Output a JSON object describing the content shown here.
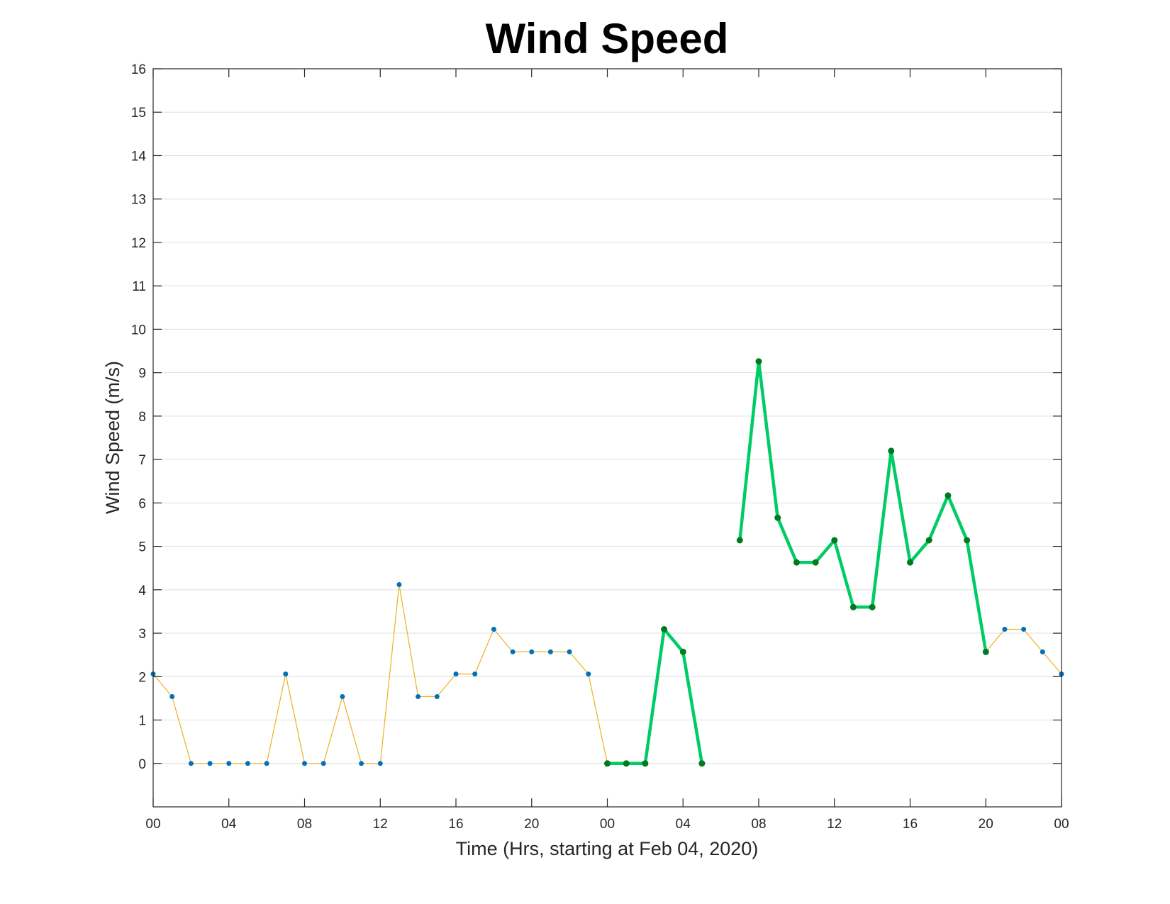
{
  "chart_data": {
    "type": "line",
    "title": "Wind Speed",
    "xlabel": "Time (Hrs, starting at Feb 04, 2020)",
    "ylabel": "Wind Speed (m/s)",
    "xlim": [
      0,
      48
    ],
    "ylim": [
      -1,
      16
    ],
    "x_ticks": [
      0,
      4,
      8,
      12,
      16,
      20,
      24,
      28,
      32,
      36,
      40,
      44,
      48
    ],
    "x_tick_labels": [
      "00",
      "04",
      "08",
      "12",
      "16",
      "20",
      "00",
      "04",
      "08",
      "12",
      "16",
      "20",
      "00"
    ],
    "y_ticks": [
      0,
      1,
      2,
      3,
      4,
      5,
      6,
      7,
      8,
      9,
      10,
      11,
      12,
      13,
      14,
      15,
      16
    ],
    "grid": "horizontal",
    "series": [
      {
        "color": "#EDB120",
        "marker_color": "#0072BD",
        "x": [
          0,
          1,
          2,
          3,
          4,
          5,
          6,
          7,
          8,
          9,
          10,
          11,
          12,
          13,
          14,
          15,
          16,
          17,
          18,
          19,
          20,
          21,
          22,
          23,
          24,
          25,
          26,
          27,
          28,
          29,
          30,
          31,
          32,
          33,
          34,
          35,
          36,
          37,
          38,
          39,
          40,
          41,
          42,
          43,
          44,
          45,
          46,
          47,
          48
        ],
        "y": [
          2.06,
          1.54,
          0,
          0,
          0,
          0,
          0,
          2.06,
          0,
          0,
          1.54,
          0,
          0,
          4.12,
          1.54,
          1.54,
          2.06,
          2.06,
          3.09,
          2.57,
          2.57,
          2.57,
          2.57,
          2.06,
          0,
          0,
          0,
          3.09,
          2.57,
          0,
          null,
          5.14,
          9.26,
          5.66,
          4.63,
          4.63,
          5.14,
          3.6,
          3.6,
          7.2,
          4.63,
          5.14,
          6.17,
          5.14,
          2.57,
          3.09,
          3.09,
          2.57,
          2.06
        ]
      },
      {
        "color": "#00CC66",
        "marker_color": "#007A1F",
        "x": [
          24,
          25,
          26,
          27,
          28,
          29
        ],
        "y": [
          0,
          0,
          0,
          3.09,
          2.57,
          0
        ]
      },
      {
        "color": "#00CC66",
        "marker_color": "#007A1F",
        "x": [
          31,
          32,
          33,
          34,
          35,
          36,
          37,
          38,
          39,
          40,
          41,
          42,
          43,
          44
        ],
        "y": [
          5.14,
          9.26,
          5.66,
          4.63,
          4.63,
          5.14,
          3.6,
          3.6,
          7.2,
          4.63,
          5.14,
          6.17,
          5.14,
          2.57
        ]
      }
    ]
  }
}
